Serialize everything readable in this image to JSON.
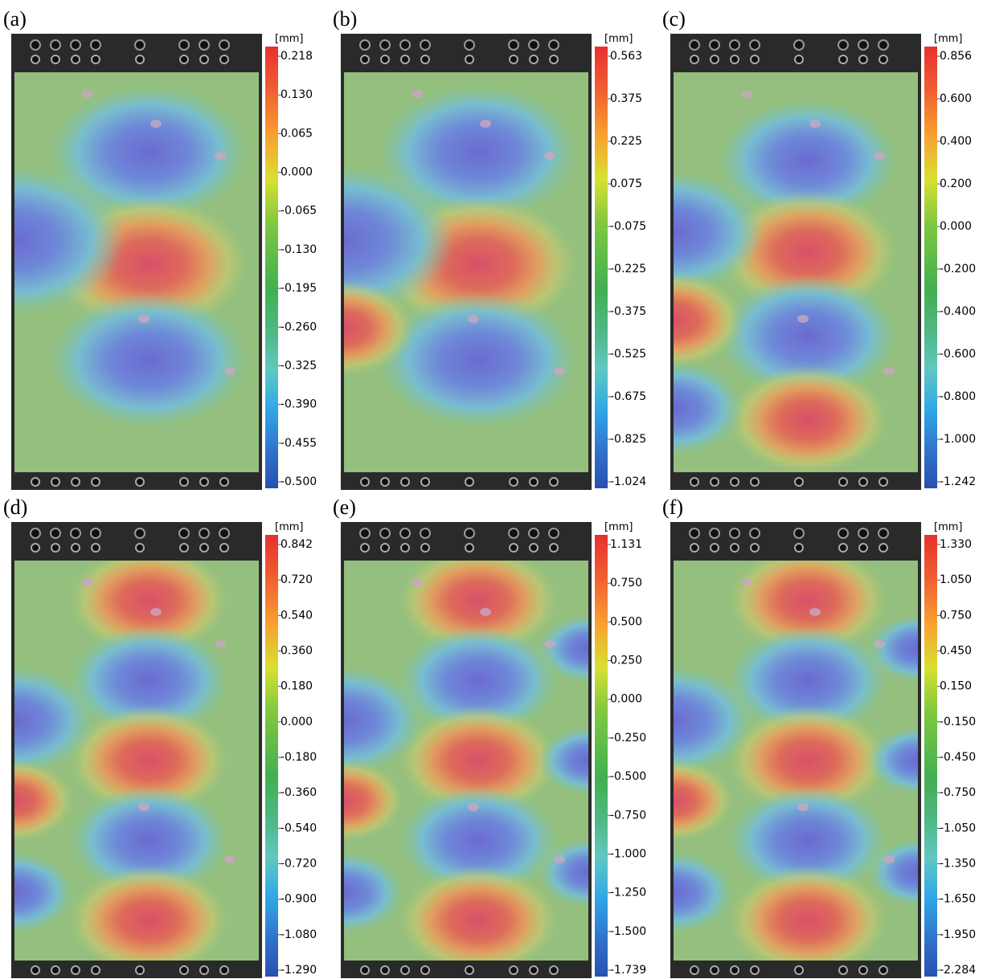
{
  "panels": [
    {
      "label": "(a)",
      "unit": "[mm]",
      "ticks": [
        "0.218",
        "0.130",
        "0.065",
        "0.000",
        "-0.065",
        "-0.130",
        "-0.195",
        "-0.260",
        "-0.325",
        "-0.390",
        "-0.455",
        "-0.500"
      ]
    },
    {
      "label": "(b)",
      "unit": "[mm]",
      "ticks": [
        "0.563",
        "0.375",
        "0.225",
        "0.075",
        "-0.075",
        "-0.225",
        "-0.375",
        "-0.525",
        "-0.675",
        "-0.825",
        "-1.024"
      ]
    },
    {
      "label": "(c)",
      "unit": "[mm]",
      "ticks": [
        "0.856",
        "0.600",
        "0.400",
        "0.200",
        "0.000",
        "-0.200",
        "-0.400",
        "-0.600",
        "-0.800",
        "-1.000",
        "-1.242"
      ]
    },
    {
      "label": "(d)",
      "unit": "[mm]",
      "ticks": [
        "0.842",
        "0.720",
        "0.540",
        "0.360",
        "0.180",
        "0.000",
        "-0.180",
        "-0.360",
        "-0.540",
        "-0.720",
        "-0.900",
        "-1.080",
        "-1.290"
      ]
    },
    {
      "label": "(e)",
      "unit": "[mm]",
      "ticks": [
        "1.131",
        "0.750",
        "0.500",
        "0.250",
        "0.000",
        "-0.250",
        "-0.500",
        "-0.750",
        "-1.000",
        "-1.250",
        "-1.500",
        "-1.739"
      ]
    },
    {
      "label": "(f)",
      "unit": "[mm]",
      "ticks": [
        "1.330",
        "1.050",
        "0.750",
        "0.450",
        "0.150",
        "-0.150",
        "-0.450",
        "-0.750",
        "-1.050",
        "-1.350",
        "-1.650",
        "-1.950",
        "-2.284"
      ]
    }
  ]
}
